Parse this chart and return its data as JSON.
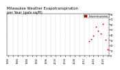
{
  "title": "Milwaukee Weather Evapotranspiration\nper Year (gals sq/ft)",
  "title_fontsize": 3.8,
  "years": [
    1980,
    1981,
    1982,
    1983,
    1984,
    1985,
    1986,
    1987,
    1988,
    1989,
    1990,
    1991,
    1992,
    1993,
    1994,
    1995,
    1996,
    1997,
    1998,
    1999,
    2000,
    2001,
    2002,
    2003,
    2004,
    2005,
    2006,
    2007,
    2008,
    2009,
    2010,
    2011,
    2012,
    2013,
    2014,
    2015,
    2016,
    2017,
    2018,
    2019,
    2020,
    2021,
    2022
  ],
  "values": [
    null,
    null,
    null,
    null,
    null,
    null,
    null,
    null,
    null,
    null,
    null,
    null,
    null,
    null,
    null,
    null,
    null,
    null,
    null,
    null,
    null,
    null,
    null,
    null,
    null,
    null,
    null,
    null,
    null,
    null,
    null,
    null,
    null,
    null,
    28,
    32,
    38,
    55,
    48,
    42,
    60,
    30,
    12
  ],
  "dot_color": "#cc0000",
  "legend_color": "#cc0000",
  "legend_label": "Evapotranspiration",
  "bg_color": "#ffffff",
  "grid_color": "#bbbbbb",
  "ylim": [
    0,
    80
  ],
  "xlim": [
    1979.5,
    2022.5
  ],
  "tick_fontsize": 2.5,
  "xlabel_fontsize": 2.5,
  "marker_size": 1.8,
  "ytick_labels": [
    "0",
    "10",
    "20",
    "30",
    "40",
    "50",
    "60",
    "70",
    "80"
  ],
  "ytick_values": [
    0,
    10,
    20,
    30,
    40,
    50,
    60,
    70,
    80
  ]
}
